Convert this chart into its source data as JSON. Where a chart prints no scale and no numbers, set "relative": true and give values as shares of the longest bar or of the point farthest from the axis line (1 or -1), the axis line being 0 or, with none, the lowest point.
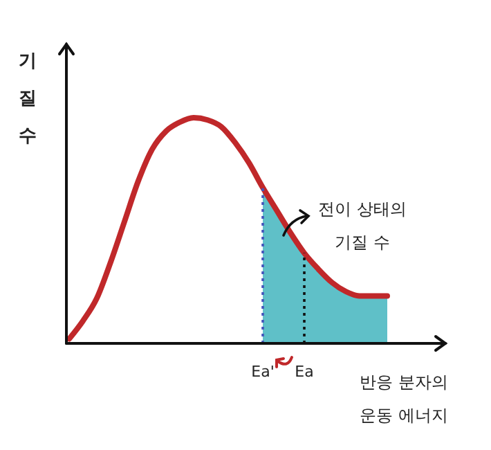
{
  "chart_data": {
    "type": "line",
    "relative": true,
    "ylabel": "기질 수",
    "xlabel": "반응 분자의\n운동 에너지",
    "categories": [
      null,
      null,
      null,
      null,
      null,
      null,
      null,
      null,
      null,
      null,
      null,
      null,
      null,
      null,
      "Ea'",
      null,
      null,
      "Ea",
      null,
      null,
      null,
      null,
      null,
      null
    ],
    "series": [
      {
        "type": "area",
        "color": "#5fc0c8",
        "values": [
          null,
          null,
          null,
          null,
          null,
          null,
          null,
          null,
          null,
          null,
          null,
          null,
          null,
          null,
          0.69,
          0.59,
          0.49,
          0.4,
          0.33,
          0.27,
          0.23,
          0.21,
          0.21,
          0.21
        ]
      },
      {
        "color": "#c0282a",
        "values": [
          0.02,
          0.1,
          0.2,
          0.36,
          0.54,
          0.72,
          0.86,
          0.94,
          0.98,
          1,
          0.99,
          0.96,
          0.89,
          0.8,
          0.69,
          0.59,
          0.49,
          0.4,
          0.33,
          0.27,
          0.23,
          0.21,
          0.21,
          0.21
        ]
      }
    ],
    "ref_lines": [
      {
        "axis": "x",
        "value": "Ea'",
        "color": "#4455bb",
        "line_style": "dotted"
      },
      {
        "axis": "x",
        "value": "Ea",
        "color": "#111111",
        "line_style": "dotted"
      }
    ],
    "annotations": [
      "전이 상태의\n기질 수"
    ],
    "grid": false,
    "marker": "none"
  }
}
